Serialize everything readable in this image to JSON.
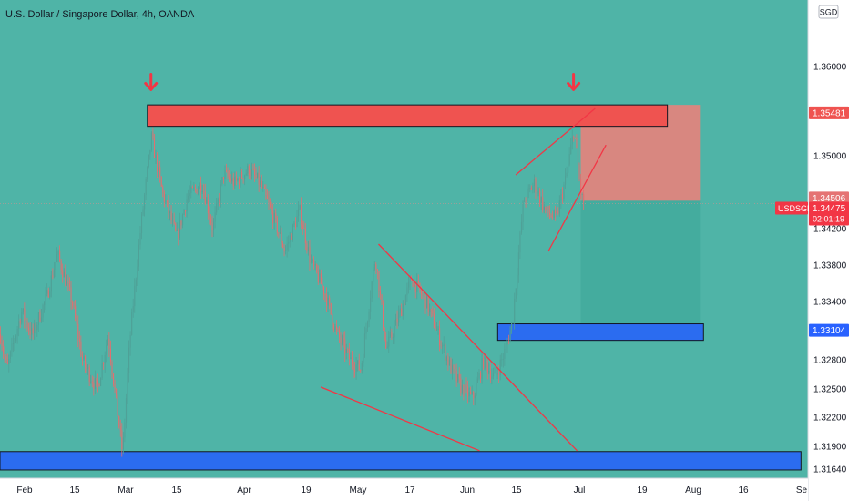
{
  "header": {
    "title": "U.S. Dollar / Singapore Dollar, 4h, OANDA",
    "currency": "SGD"
  },
  "colors": {
    "background": "#4fb4a7",
    "candle_up": "#4fa197",
    "candle_down": "#e07070",
    "resistance_zone": "#ef5350",
    "support_zone": "#2b6cf0",
    "stop_zone": "#f07f79",
    "target_zone": "#43ab9d",
    "trend_line": "#f23645"
  },
  "chart_data": {
    "type": "candlestick",
    "symbol": "USDSGD",
    "timeframe": "4h",
    "broker": "OANDA",
    "y_axis": {
      "range": [
        1.3154,
        1.3632
      ],
      "ticks": [
        1.36,
        1.35,
        1.342,
        1.338,
        1.334,
        1.328,
        1.325,
        1.322,
        1.319,
        1.3164
      ],
      "tick_labels": [
        "1.36000",
        "1.35000",
        "1.34200",
        "1.33800",
        "1.33400",
        "1.32800",
        "1.32500",
        "1.32200",
        "1.31900",
        "1.31640"
      ]
    },
    "x_axis": {
      "labels": [
        "Feb",
        "15",
        "Mar",
        "15",
        "Apr",
        "19",
        "May",
        "17",
        "Jun",
        "15",
        "Jul",
        "19",
        "Aug",
        "16",
        "Se"
      ]
    },
    "price_path": [
      [
        "2022-01-24",
        1.333
      ],
      [
        "2022-01-27",
        1.327
      ],
      [
        "2022-01-31",
        1.333
      ],
      [
        "2022-02-03",
        1.3305
      ],
      [
        "2022-02-07",
        1.3345
      ],
      [
        "2022-02-10",
        1.3392
      ],
      [
        "2022-02-14",
        1.334
      ],
      [
        "2022-02-17",
        1.3278
      ],
      [
        "2022-02-21",
        1.325
      ],
      [
        "2022-02-24",
        1.3305
      ],
      [
        "2022-02-28",
        1.3182
      ],
      [
        "2022-03-02",
        1.33
      ],
      [
        "2022-03-05",
        1.342
      ],
      [
        "2022-03-08",
        1.352
      ],
      [
        "2022-03-11",
        1.346
      ],
      [
        "2022-03-15",
        1.341
      ],
      [
        "2022-03-18",
        1.3455
      ],
      [
        "2022-03-22",
        1.347
      ],
      [
        "2022-03-25",
        1.342
      ],
      [
        "2022-03-28",
        1.348
      ],
      [
        "2022-03-31",
        1.347
      ],
      [
        "2022-04-04",
        1.3485
      ],
      [
        "2022-04-07",
        1.347
      ],
      [
        "2022-04-11",
        1.343
      ],
      [
        "2022-04-14",
        1.3395
      ],
      [
        "2022-04-18",
        1.344
      ],
      [
        "2022-04-21",
        1.3385
      ],
      [
        "2022-04-25",
        1.335
      ],
      [
        "2022-04-28",
        1.331
      ],
      [
        "2022-05-02",
        1.328
      ],
      [
        "2022-05-05",
        1.327
      ],
      [
        "2022-05-09",
        1.339
      ],
      [
        "2022-05-12",
        1.329
      ],
      [
        "2022-05-16",
        1.333
      ],
      [
        "2022-05-19",
        1.3365
      ],
      [
        "2022-05-23",
        1.334
      ],
      [
        "2022-05-26",
        1.331
      ],
      [
        "2022-05-30",
        1.327
      ],
      [
        "2022-06-02",
        1.325
      ],
      [
        "2022-06-05",
        1.324
      ],
      [
        "2022-06-08",
        1.328
      ],
      [
        "2022-06-11",
        1.326
      ],
      [
        "2022-06-14",
        1.329
      ],
      [
        "2022-06-16",
        1.332
      ],
      [
        "2022-06-19",
        1.345
      ],
      [
        "2022-06-22",
        1.347
      ],
      [
        "2022-06-25",
        1.344
      ],
      [
        "2022-06-28",
        1.343
      ],
      [
        "2022-07-01",
        1.348
      ],
      [
        "2022-07-03",
        1.353
      ],
      [
        "2022-07-05",
        1.3455
      ],
      [
        "2022-07-06",
        1.34475
      ]
    ],
    "levels": {
      "resistance_label": "1.35481",
      "resistance": 1.35481,
      "entry_label": "1.34506",
      "entry": 1.34506,
      "current_symbol": "USDSGD",
      "current_price": 1.34475,
      "current_price_label": "1.34475",
      "countdown": "02:01:19",
      "target_label": "1.33104",
      "target": 1.33104
    },
    "zones": [
      {
        "kind": "resistance",
        "start": "2022-03-07",
        "end": "2022-07-29",
        "top": 1.3557,
        "bottom": 1.3533
      },
      {
        "kind": "support-target",
        "start": "2022-06-12",
        "end": "2022-08-08",
        "top": 1.3317,
        "bottom": 1.33
      },
      {
        "kind": "support-base",
        "start": "2022-01-20",
        "end": "2022-09-04",
        "top": 1.3184,
        "bottom": 1.3163
      }
    ],
    "position": {
      "type": "short",
      "start": "2022-07-05",
      "end": "2022-08-07",
      "entry": 1.34506,
      "stop": 1.3557,
      "target": 1.3317
    },
    "trend_lines": [
      {
        "from": [
          "2022-04-24",
          1.3252
        ],
        "to": [
          "2022-06-07",
          1.3185
        ]
      },
      {
        "from": [
          "2022-05-10",
          1.3403
        ],
        "to": [
          "2022-07-04",
          1.3185
        ]
      },
      {
        "from": [
          "2022-06-17",
          1.3479
        ],
        "to": [
          "2022-07-09",
          1.3553
        ]
      },
      {
        "from": [
          "2022-06-26",
          1.3395
        ],
        "to": [
          "2022-07-12",
          1.3512
        ]
      }
    ],
    "markers": [
      {
        "type": "arrow-down",
        "at": [
          "2022-03-08",
          1.3573
        ]
      },
      {
        "type": "arrow-down",
        "at": [
          "2022-07-03",
          1.3573
        ]
      }
    ],
    "grid": false,
    "legend": "none"
  }
}
